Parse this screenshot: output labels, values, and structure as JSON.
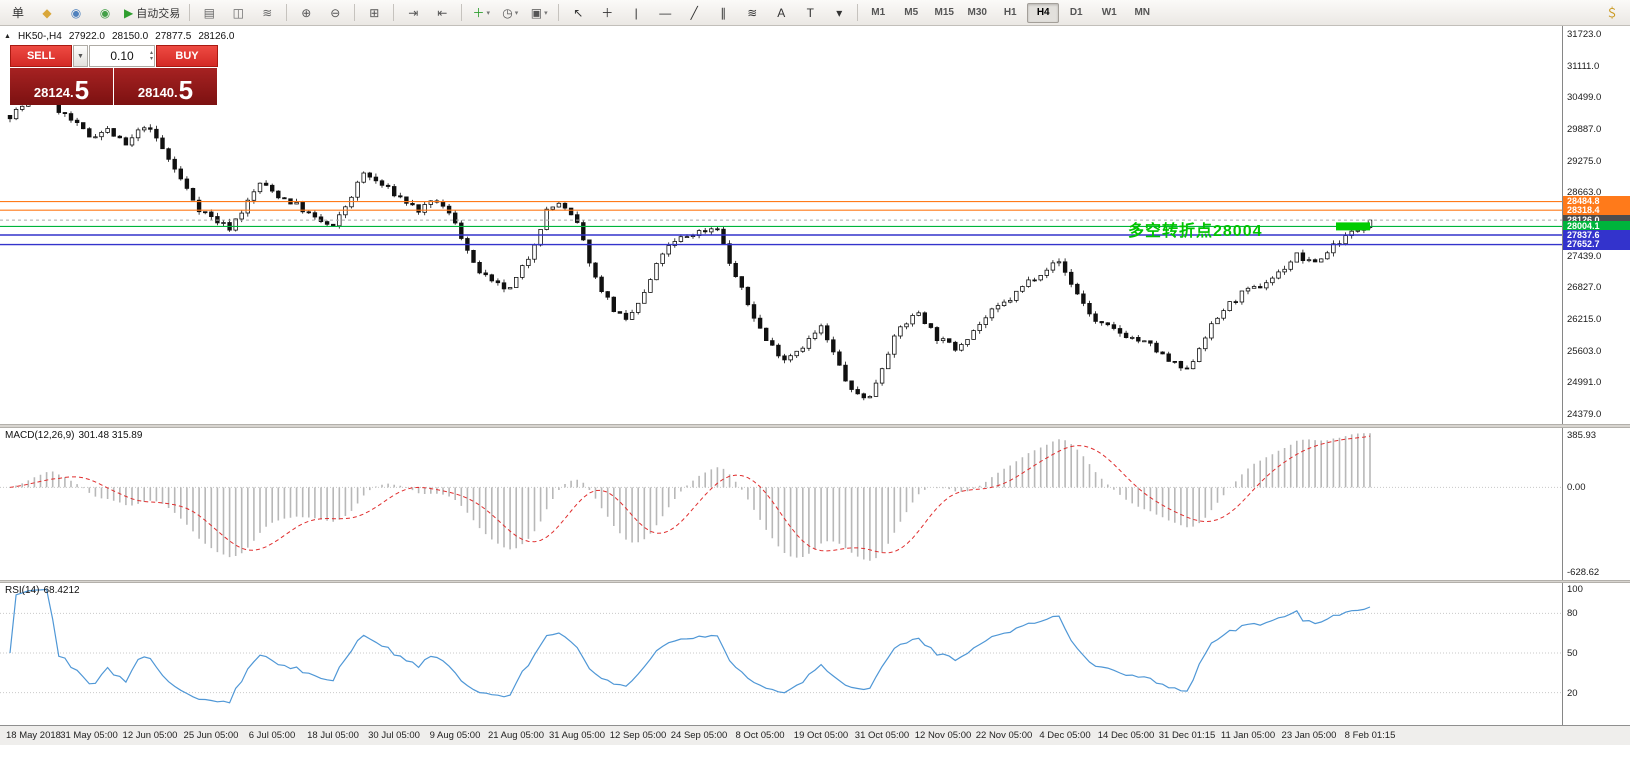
{
  "toolbar": {
    "groups": [
      {
        "name": "standard",
        "items": [
          {
            "name": "new-order-button",
            "glyph": "单",
            "color": "#333333"
          },
          {
            "name": "market-watch-icon",
            "glyph": "◆",
            "color": "#d9a73a"
          },
          {
            "name": "navigator-icon",
            "glyph": "◉",
            "color": "#4f81bd"
          },
          {
            "name": "terminal-icon",
            "glyph": "◉",
            "color": "#43a047"
          },
          {
            "name": "autotrade-button",
            "glyph": "▶",
            "color": "#2e9e2e",
            "label": "自动交易"
          }
        ]
      },
      {
        "name": "chart-type",
        "items": [
          {
            "name": "bar-chart-icon",
            "glyph": "▤",
            "color": "#666666"
          },
          {
            "name": "candlestick-chart-icon",
            "glyph": "◫",
            "color": "#666666"
          },
          {
            "name": "line-chart-icon",
            "glyph": "≋",
            "color": "#666666"
          }
        ]
      },
      {
        "name": "zoom",
        "items": [
          {
            "name": "zoom-in-icon",
            "glyph": "⊕",
            "color": "#555555"
          },
          {
            "name": "zoom-out-icon",
            "glyph": "⊖",
            "color": "#555555"
          }
        ]
      },
      {
        "name": "windows",
        "items": [
          {
            "name": "tile-windows-icon",
            "glyph": "⊞",
            "color": "#555555"
          }
        ]
      },
      {
        "name": "scroll",
        "items": [
          {
            "name": "auto-scroll-icon",
            "glyph": "⇥",
            "color": "#555555"
          },
          {
            "name": "chart-shift-icon",
            "glyph": "⇤",
            "color": "#555555"
          }
        ]
      },
      {
        "name": "chart-tools",
        "items": [
          {
            "name": "new-chart-icon",
            "glyph": "＋",
            "color": "#2e9e2e",
            "dropdown": true
          },
          {
            "name": "periods-icon",
            "glyph": "◷",
            "color": "#555555",
            "dropdown": true
          },
          {
            "name": "templates-icon",
            "glyph": "▣",
            "color": "#555555",
            "dropdown": true
          }
        ]
      },
      {
        "name": "drawing-tools",
        "items": [
          {
            "name": "cursor-icon",
            "glyph": "↖",
            "color": "#333333"
          },
          {
            "name": "crosshair-icon",
            "glyph": "＋",
            "color": "#333333"
          },
          {
            "name": "vertical-line-icon",
            "glyph": "|",
            "color": "#333333"
          },
          {
            "name": "horizontal-line-icon",
            "glyph": "—",
            "color": "#333333"
          },
          {
            "name": "trendline-icon",
            "glyph": "╱",
            "color": "#333333"
          },
          {
            "name": "channel-icon",
            "glyph": "∥",
            "color": "#333333"
          },
          {
            "name": "fibonacci-icon",
            "glyph": "≋",
            "color": "#333333"
          },
          {
            "name": "text-icon",
            "glyph": "A",
            "color": "#333333"
          },
          {
            "name": "label-icon",
            "glyph": "T",
            "color": "#333333"
          },
          {
            "name": "arrows-dropdown-icon",
            "glyph": "▾",
            "color": "#333333"
          }
        ]
      }
    ],
    "timeframes": [
      "M1",
      "M5",
      "M15",
      "M30",
      "H1",
      "H4",
      "D1",
      "W1",
      "MN"
    ],
    "active_timeframe": "H4",
    "right_items": [
      {
        "name": "economic-data-icon",
        "glyph": "＄",
        "color": "#c9971c"
      }
    ]
  },
  "chart": {
    "symbol_timeframe": "HK50-,H4",
    "collapse_icon": "▲",
    "ohlc": {
      "open": "27922.0",
      "high": "28150.0",
      "low": "27877.5",
      "close": "28126.0"
    },
    "trade_panel": {
      "sell_label": "SELL",
      "buy_label": "BUY",
      "volume": "0.10",
      "dropdown_glyph": "▼",
      "spin_up": "▴",
      "spin_down": "▾",
      "sell_price_small": "28124.",
      "sell_price_big": "5",
      "buy_price_small": "28140.",
      "buy_price_big": "5"
    },
    "annotation": {
      "text": "多空转折点28004",
      "color": "#00C400"
    },
    "levels": [
      {
        "price": 28484.8,
        "label": "28484.8",
        "color": "#FF7A1A",
        "type": "line"
      },
      {
        "price": 28318.4,
        "label": "28318.4",
        "color": "#FF7A1A",
        "type": "line"
      },
      {
        "price": 28126.0,
        "label": "28126.0",
        "color": "#4D4D4D",
        "type": "current"
      },
      {
        "price": 28004.1,
        "label": "28004.1",
        "color": "#00B43C",
        "type": "line"
      },
      {
        "price": 27837.6,
        "label": "27837.6",
        "color": "#3333CC",
        "type": "line"
      },
      {
        "price": 27652.7,
        "label": "27652.7",
        "color": "#3333CC",
        "type": "line"
      }
    ],
    "highlight_zone": {
      "price": 28004,
      "color": "#00CC00"
    }
  },
  "indicators": {
    "macd": {
      "label": "MACD(12,26,9)",
      "values": "301.48 315.89",
      "axis": [
        "385.93",
        "0.00",
        "-628.62"
      ]
    },
    "rsi": {
      "label": "RSI(14)",
      "values": "68.4212",
      "axis": [
        "100",
        "80",
        "50",
        "20"
      ]
    }
  },
  "chart_data": {
    "type": "candlestick",
    "title": "HK50- H4",
    "ohlc_display": {
      "open": 27922.0,
      "high": 28150.0,
      "low": 27877.5,
      "close": 28126.0
    },
    "y_axis": {
      "min": 24379.0,
      "max": 31723.0,
      "tick_step": 612,
      "ticks": [
        "31723.0",
        "31111.0",
        "30499.0",
        "29887.0",
        "29275.0",
        "28663.0",
        "28051.0",
        "27439.0",
        "26827.0",
        "26215.0",
        "25603.0",
        "24991.0",
        "24379.0"
      ]
    },
    "x_labels": [
      "18 May 2018",
      "31 May 05:00",
      "12 Jun 05:00",
      "25 Jun 05:00",
      "6 Jul 05:00",
      "18 Jul 05:00",
      "30 Jul 05:00",
      "9 Aug 05:00",
      "21 Aug 05:00",
      "31 Aug 05:00",
      "12 Sep 05:00",
      "24 Sep 05:00",
      "8 Oct 05:00",
      "19 Oct 05:00",
      "31 Oct 05:00",
      "12 Nov 05:00",
      "22 Nov 05:00",
      "4 Dec 05:00",
      "14 Dec 05:00",
      "31 Dec 01:15",
      "11 Jan 05:00",
      "23 Jan 05:00",
      "8 Feb 01:15"
    ],
    "candle_count": 224,
    "last_close": 28126.0,
    "price_anchors": [
      [
        0,
        30150
      ],
      [
        3,
        30420
      ],
      [
        6,
        30650
      ],
      [
        8,
        30250
      ],
      [
        10,
        30050
      ],
      [
        13,
        29750
      ],
      [
        16,
        29870
      ],
      [
        19,
        29560
      ],
      [
        22,
        29960
      ],
      [
        24,
        29700
      ],
      [
        26,
        29300
      ],
      [
        29,
        28720
      ],
      [
        31,
        28350
      ],
      [
        34,
        28100
      ],
      [
        36,
        27980
      ],
      [
        38,
        28300
      ],
      [
        41,
        28840
      ],
      [
        44,
        28600
      ],
      [
        47,
        28420
      ],
      [
        50,
        28150
      ],
      [
        53,
        27980
      ],
      [
        56,
        28600
      ],
      [
        58,
        29030
      ],
      [
        61,
        28800
      ],
      [
        64,
        28560
      ],
      [
        67,
        28310
      ],
      [
        70,
        28500
      ],
      [
        73,
        28100
      ],
      [
        76,
        27250
      ],
      [
        79,
        26900
      ],
      [
        82,
        26780
      ],
      [
        85,
        27400
      ],
      [
        88,
        28300
      ],
      [
        90,
        28460
      ],
      [
        93,
        28050
      ],
      [
        96,
        27000
      ],
      [
        99,
        26400
      ],
      [
        101,
        26150
      ],
      [
        104,
        26700
      ],
      [
        107,
        27500
      ],
      [
        110,
        27780
      ],
      [
        113,
        27900
      ],
      [
        116,
        28000
      ],
      [
        118,
        27300
      ],
      [
        121,
        26500
      ],
      [
        124,
        25800
      ],
      [
        127,
        25450
      ],
      [
        130,
        25700
      ],
      [
        133,
        26050
      ],
      [
        136,
        25300
      ],
      [
        138,
        24800
      ],
      [
        141,
        24700
      ],
      [
        144,
        25600
      ],
      [
        146,
        26050
      ],
      [
        149,
        26350
      ],
      [
        152,
        25850
      ],
      [
        155,
        25650
      ],
      [
        158,
        26000
      ],
      [
        161,
        26350
      ],
      [
        164,
        26600
      ],
      [
        167,
        26950
      ],
      [
        170,
        27200
      ],
      [
        172,
        27320
      ],
      [
        175,
        26700
      ],
      [
        178,
        26150
      ],
      [
        181,
        26000
      ],
      [
        184,
        25850
      ],
      [
        187,
        25700
      ],
      [
        190,
        25400
      ],
      [
        193,
        25200
      ],
      [
        196,
        25900
      ],
      [
        199,
        26400
      ],
      [
        202,
        26700
      ],
      [
        205,
        26850
      ],
      [
        208,
        27100
      ],
      [
        211,
        27450
      ],
      [
        213,
        27300
      ],
      [
        215,
        27380
      ],
      [
        217,
        27650
      ],
      [
        219,
        27800
      ],
      [
        221,
        27950
      ],
      [
        223,
        28126
      ]
    ],
    "horizontal_levels": [
      28484.8,
      28318.4,
      28126.0,
      28004.1,
      27837.6,
      27652.7
    ],
    "subcharts": [
      {
        "type": "macd",
        "params": [
          12,
          26,
          9
        ],
        "current": [
          301.48,
          315.89
        ],
        "range": [
          -628.62,
          385.93
        ]
      },
      {
        "type": "rsi",
        "params": [
          14
        ],
        "current": 68.4212,
        "range": [
          0,
          100
        ],
        "levels": [
          80,
          50,
          20
        ]
      }
    ]
  }
}
